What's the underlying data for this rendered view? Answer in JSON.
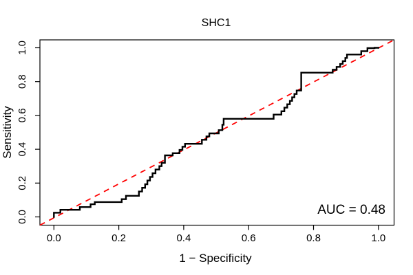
{
  "figure": {
    "background_color": "#FFFFFF",
    "text_color": "#000000"
  },
  "chart_data": {
    "type": "line",
    "subtype": "roc-step-curve",
    "title": "SHC1",
    "xlabel": "1 − Specificity",
    "ylabel": "Sensitivity",
    "annotation": "AUC = 0.48",
    "auc_value": 0.48,
    "xlim": [
      0,
      1
    ],
    "ylim": [
      0,
      1
    ],
    "grid": false,
    "legend_position": "none",
    "x_tick_values": [
      0.0,
      0.2,
      0.4,
      0.6,
      0.8,
      1.0
    ],
    "x_tick_labels": [
      "0.0",
      "0.2",
      "0.4",
      "0.6",
      "0.8",
      "1.0"
    ],
    "y_tick_values": [
      0.0,
      0.2,
      0.4,
      0.6,
      0.8,
      1.0
    ],
    "y_tick_labels": [
      "0.0",
      "0.2",
      "0.4",
      "0.6",
      "0.8",
      "1.0"
    ],
    "series": [
      {
        "name": "ROC curve",
        "style": "step-solid",
        "color": "#000000",
        "line_width": 2.4,
        "points": [
          [
            0.0,
            0.0
          ],
          [
            0.0,
            0.025
          ],
          [
            0.02,
            0.025
          ],
          [
            0.02,
            0.042
          ],
          [
            0.08,
            0.042
          ],
          [
            0.08,
            0.058
          ],
          [
            0.113,
            0.058
          ],
          [
            0.113,
            0.075
          ],
          [
            0.126,
            0.075
          ],
          [
            0.126,
            0.088
          ],
          [
            0.209,
            0.088
          ],
          [
            0.209,
            0.105
          ],
          [
            0.222,
            0.105
          ],
          [
            0.222,
            0.125
          ],
          [
            0.262,
            0.125
          ],
          [
            0.262,
            0.15
          ],
          [
            0.272,
            0.15
          ],
          [
            0.272,
            0.172
          ],
          [
            0.281,
            0.172
          ],
          [
            0.281,
            0.193
          ],
          [
            0.288,
            0.193
          ],
          [
            0.288,
            0.215
          ],
          [
            0.296,
            0.215
          ],
          [
            0.296,
            0.236
          ],
          [
            0.304,
            0.236
          ],
          [
            0.304,
            0.258
          ],
          [
            0.313,
            0.258
          ],
          [
            0.313,
            0.28
          ],
          [
            0.325,
            0.28
          ],
          [
            0.325,
            0.3
          ],
          [
            0.332,
            0.3
          ],
          [
            0.332,
            0.32
          ],
          [
            0.342,
            0.32
          ],
          [
            0.342,
            0.364
          ],
          [
            0.366,
            0.364
          ],
          [
            0.366,
            0.377
          ],
          [
            0.387,
            0.377
          ],
          [
            0.387,
            0.396
          ],
          [
            0.396,
            0.396
          ],
          [
            0.396,
            0.415
          ],
          [
            0.404,
            0.415
          ],
          [
            0.404,
            0.432
          ],
          [
            0.456,
            0.432
          ],
          [
            0.456,
            0.456
          ],
          [
            0.47,
            0.456
          ],
          [
            0.47,
            0.476
          ],
          [
            0.479,
            0.476
          ],
          [
            0.479,
            0.494
          ],
          [
            0.508,
            0.494
          ],
          [
            0.508,
            0.513
          ],
          [
            0.519,
            0.513
          ],
          [
            0.519,
            0.545
          ],
          [
            0.523,
            0.545
          ],
          [
            0.523,
            0.58
          ],
          [
            0.677,
            0.58
          ],
          [
            0.677,
            0.605
          ],
          [
            0.701,
            0.605
          ],
          [
            0.701,
            0.625
          ],
          [
            0.71,
            0.625
          ],
          [
            0.71,
            0.646
          ],
          [
            0.719,
            0.646
          ],
          [
            0.719,
            0.666
          ],
          [
            0.727,
            0.666
          ],
          [
            0.727,
            0.686
          ],
          [
            0.734,
            0.686
          ],
          [
            0.734,
            0.707
          ],
          [
            0.741,
            0.707
          ],
          [
            0.741,
            0.727
          ],
          [
            0.748,
            0.727
          ],
          [
            0.748,
            0.747
          ],
          [
            0.762,
            0.747
          ],
          [
            0.762,
            0.853
          ],
          [
            0.859,
            0.853
          ],
          [
            0.859,
            0.87
          ],
          [
            0.871,
            0.87
          ],
          [
            0.871,
            0.887
          ],
          [
            0.882,
            0.887
          ],
          [
            0.882,
            0.904
          ],
          [
            0.89,
            0.904
          ],
          [
            0.89,
            0.921
          ],
          [
            0.898,
            0.921
          ],
          [
            0.898,
            0.94
          ],
          [
            0.903,
            0.94
          ],
          [
            0.903,
            0.96
          ],
          [
            0.947,
            0.96
          ],
          [
            0.947,
            0.98
          ],
          [
            0.966,
            0.98
          ],
          [
            0.966,
            0.998
          ],
          [
            0.988,
            0.998
          ],
          [
            0.988,
            1.0
          ],
          [
            1.0,
            1.0
          ]
        ]
      },
      {
        "name": "chance diagonal",
        "style": "dashed",
        "color": "#FF0000",
        "line_width": 1.8,
        "points": [
          [
            0,
            0
          ],
          [
            1,
            1
          ]
        ]
      }
    ]
  }
}
